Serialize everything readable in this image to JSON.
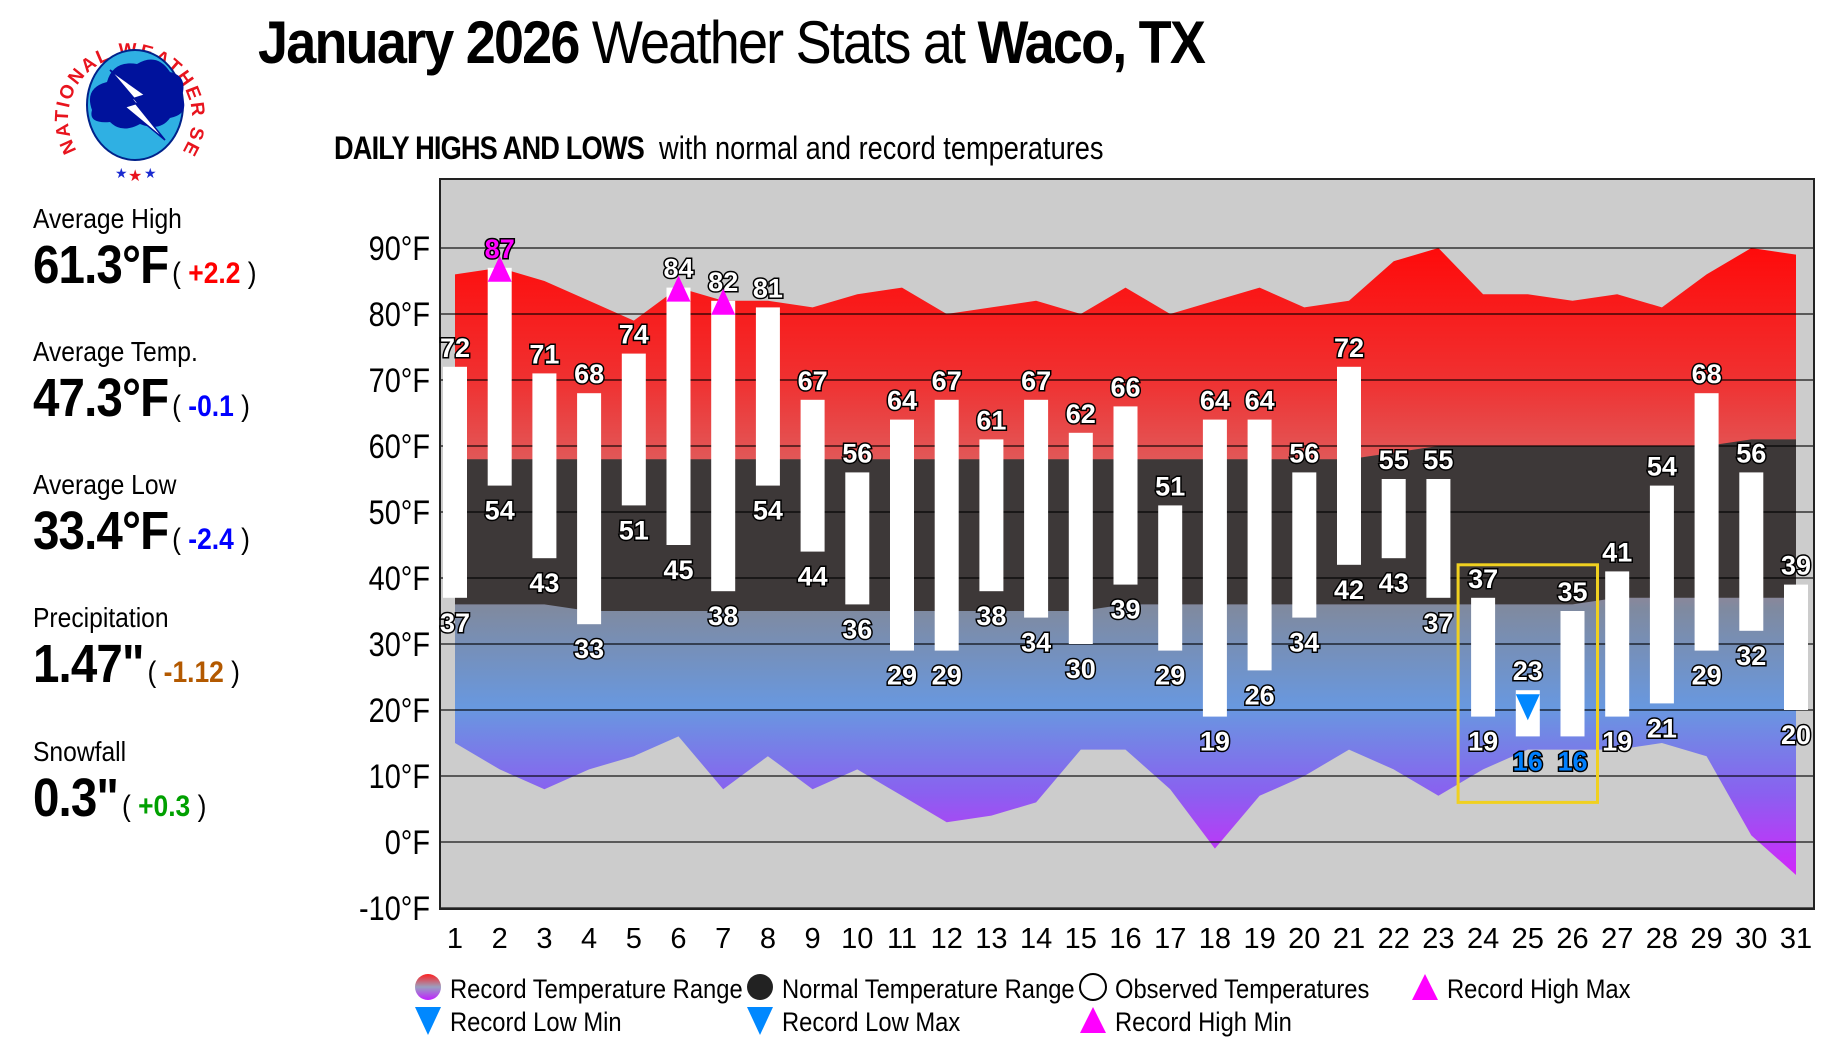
{
  "header": {
    "title_bold1": "January 2026",
    "title_mid": " Weather Stats at ",
    "title_bold2": "Waco, TX",
    "logo_text": "NATIONAL WEATHER SERVICE"
  },
  "subtitle": {
    "bold": "DAILY HIGHS AND LOWS",
    "rest": "with normal and record temperatures"
  },
  "stats": [
    {
      "label": "Average High",
      "value": "61.3°F",
      "departure": "+2.2",
      "color": "#ff0000"
    },
    {
      "label": "Average Temp.",
      "value": "47.3°F",
      "departure": "-0.1",
      "color": "#0000ff"
    },
    {
      "label": "Average Low",
      "value": "33.4°F",
      "departure": "-2.4",
      "color": "#0000ff"
    },
    {
      "label": "Precipitation",
      "value": "1.47\"",
      "departure": "-1.12",
      "color": "#b35900"
    },
    {
      "label": "Snowfall",
      "value": "0.3\"",
      "departure": "+0.3",
      "color": "#00a000"
    }
  ],
  "chart_data": {
    "type": "bar",
    "title": "DAILY HIGHS AND LOWS with normal and record temperatures",
    "ylim": [
      -10,
      100
    ],
    "yticks": [
      90,
      80,
      70,
      60,
      50,
      40,
      30,
      20,
      10,
      0,
      -10
    ],
    "ytick_labels": [
      "90°F",
      "80°F",
      "70°F",
      "60°F",
      "50°F",
      "40°F",
      "30°F",
      "20°F",
      "10°F",
      "0°F",
      "-10°F"
    ],
    "grid": true,
    "categories": [
      "1",
      "2",
      "3",
      "4",
      "5",
      "6",
      "7",
      "8",
      "9",
      "10",
      "11",
      "12",
      "13",
      "14",
      "15",
      "16",
      "17",
      "18",
      "19",
      "20",
      "21",
      "22",
      "23",
      "24",
      "25",
      "26",
      "27",
      "28",
      "29",
      "30",
      "31"
    ],
    "observed_high": [
      72,
      87,
      71,
      68,
      74,
      84,
      82,
      81,
      67,
      56,
      64,
      67,
      61,
      67,
      62,
      66,
      51,
      64,
      64,
      56,
      72,
      55,
      55,
      37,
      23,
      35,
      41,
      54,
      68,
      56,
      39
    ],
    "observed_low": [
      37,
      54,
      43,
      33,
      51,
      45,
      38,
      54,
      44,
      36,
      29,
      29,
      38,
      34,
      30,
      39,
      29,
      19,
      26,
      34,
      42,
      43,
      37,
      19,
      16,
      16,
      19,
      21,
      29,
      32,
      20
    ],
    "normal_high": [
      58,
      58,
      58,
      58,
      58,
      58,
      58,
      58,
      58,
      58,
      58,
      58,
      58,
      58,
      58,
      58,
      58,
      58,
      58,
      58,
      58,
      59,
      60,
      60,
      60,
      60,
      60,
      60,
      60,
      61,
      61
    ],
    "normal_low": [
      36,
      36,
      36,
      35,
      35,
      35,
      35,
      35,
      35,
      35,
      35,
      35,
      35,
      35,
      35,
      36,
      36,
      36,
      36,
      36,
      36,
      36,
      36,
      36,
      36,
      36,
      37,
      37,
      37,
      37,
      37
    ],
    "record_high": [
      86,
      87,
      85,
      82,
      79,
      84,
      82,
      82,
      81,
      83,
      84,
      80,
      81,
      82,
      80,
      84,
      80,
      82,
      84,
      81,
      82,
      88,
      90,
      83,
      83,
      82,
      83,
      81,
      86,
      90,
      89
    ],
    "record_low": [
      15,
      11,
      8,
      11,
      13,
      16,
      8,
      13,
      8,
      11,
      7,
      3,
      4,
      6,
      14,
      14,
      8,
      -1,
      7,
      10,
      14,
      11,
      7,
      11,
      14,
      14,
      14,
      15,
      13,
      1,
      -5
    ],
    "markers": [
      {
        "day": 2,
        "value": 87,
        "type": "record_high_max"
      },
      {
        "day": 6,
        "value": 84,
        "type": "record_high_min"
      },
      {
        "day": 7,
        "value": 82,
        "type": "record_high_min"
      },
      {
        "day": 25,
        "value": 23,
        "type": "record_low_max"
      }
    ],
    "highlight_label_colors": {
      "high_2": "#ff00ff",
      "low_25": "#0080ff",
      "low_26": "#0080ff"
    },
    "highlight_box_days": [
      24,
      26
    ],
    "colors": {
      "normal": "#3d3838",
      "observed": "#ffffff",
      "record_high_marker": "#ff00ff",
      "record_low_marker": "#0088ff",
      "highlight_box": "#f0d020",
      "background": "#cccccc"
    },
    "legend": {
      "position": "bottom",
      "items": [
        {
          "label": "Record Temperature Range",
          "symbol": "gradient-oval"
        },
        {
          "label": "Normal Temperature Range",
          "symbol": "dark-oval"
        },
        {
          "label": "Observed Temperatures",
          "symbol": "white-oval"
        },
        {
          "label": "Record High Max",
          "symbol": "triangle-up-magenta"
        },
        {
          "label": "Record Low Min",
          "symbol": "triangle-down-blue"
        },
        {
          "label": "Record Low Max",
          "symbol": "triangle-down-blue"
        },
        {
          "label": "Record High Min",
          "symbol": "triangle-up-magenta"
        }
      ]
    }
  }
}
